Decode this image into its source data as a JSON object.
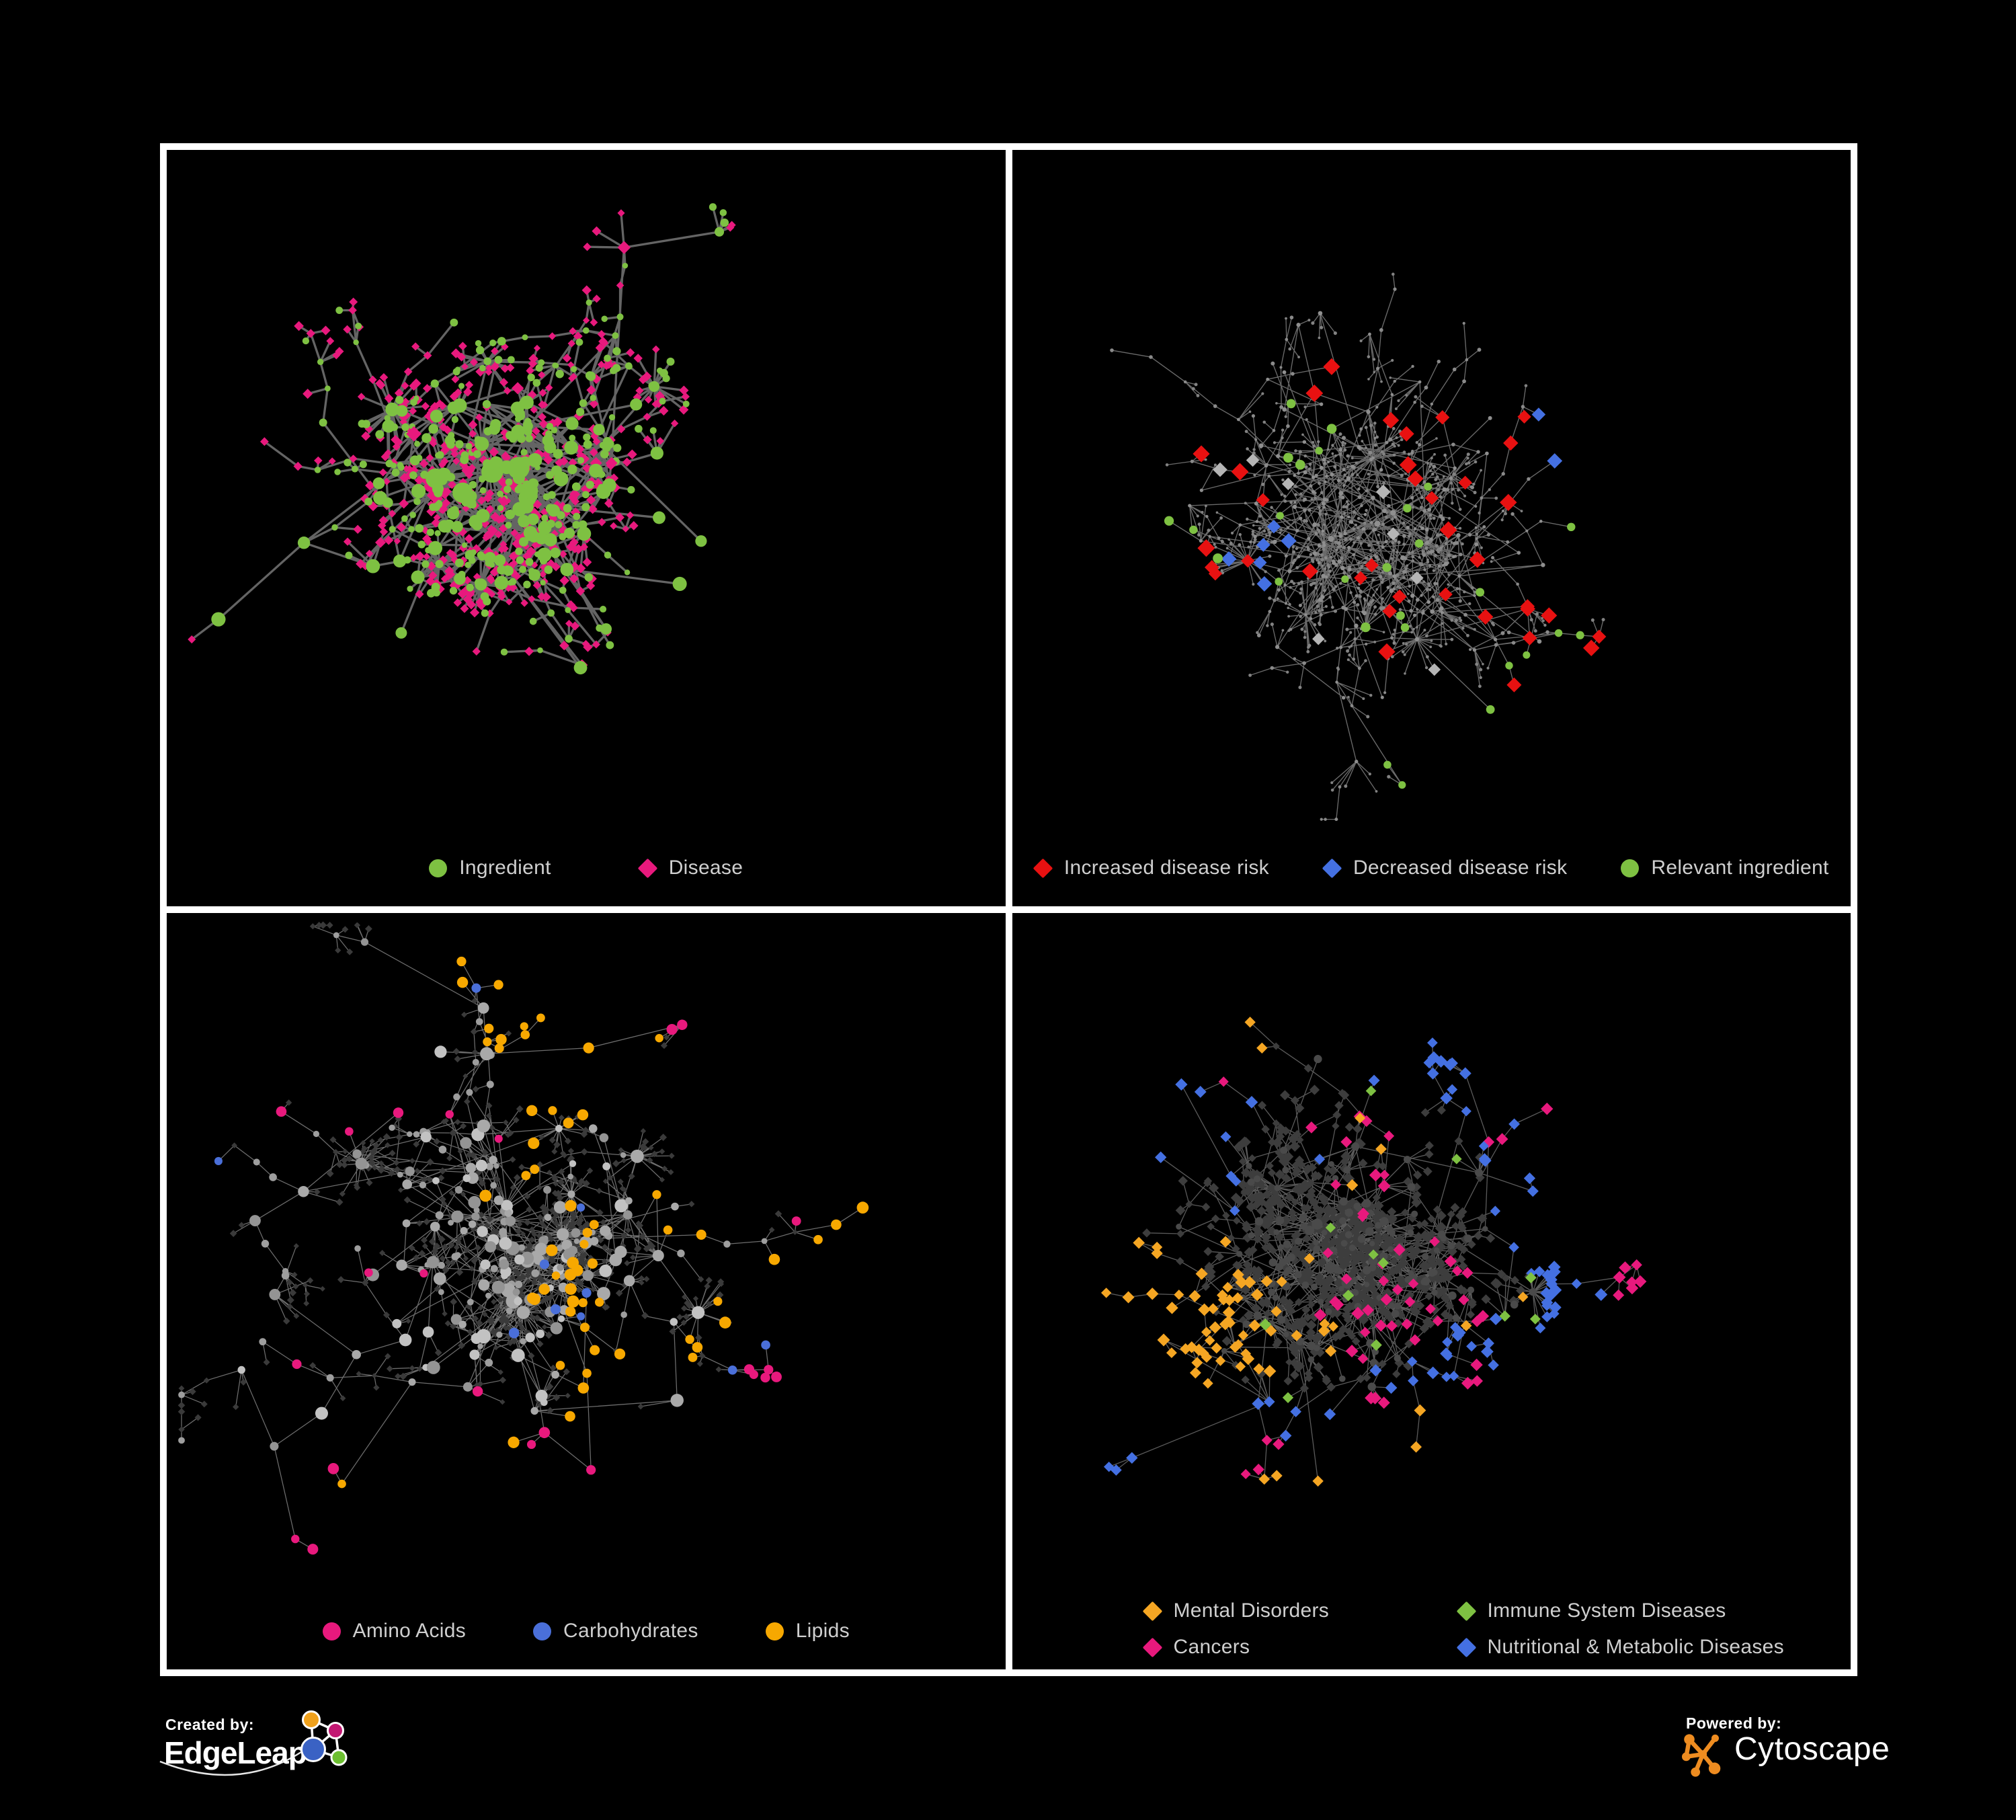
{
  "figure": {
    "background": "#000000",
    "frame_color": "#ffffff",
    "panel_background": "#000000",
    "legend_text_color": "#cfcfcf"
  },
  "panels": [
    {
      "name": "ingredient-disease-network",
      "legend": [
        {
          "label": "Ingredient",
          "shape": "circle",
          "color": "#7ec142"
        },
        {
          "label": "Disease",
          "shape": "diamond",
          "color": "#e8197d"
        }
      ]
    },
    {
      "name": "disease-risk-network",
      "legend": [
        {
          "label": "Increased disease risk",
          "shape": "diamond",
          "color": "#e81111"
        },
        {
          "label": "Decreased disease risk",
          "shape": "diamond",
          "color": "#4470e2"
        },
        {
          "label": "Relevant ingredient",
          "shape": "circle",
          "color": "#7ec142"
        }
      ]
    },
    {
      "name": "ingredient-class-network",
      "legend": [
        {
          "label": "Amino Acids",
          "shape": "circle",
          "color": "#e8197d"
        },
        {
          "label": "Carbohydrates",
          "shape": "circle",
          "color": "#4a6fd9"
        },
        {
          "label": "Lipids",
          "shape": "circle",
          "color": "#f7a800"
        }
      ]
    },
    {
      "name": "disease-category-network",
      "legend": [
        {
          "label": "Mental Disorders",
          "shape": "diamond",
          "color": "#f5a623"
        },
        {
          "label": "Immune System Diseases",
          "shape": "diamond",
          "color": "#7ec142"
        },
        {
          "label": "Cancers",
          "shape": "diamond",
          "color": "#e8197d"
        },
        {
          "label": "Nutritional & Metabolic Diseases",
          "shape": "diamond",
          "color": "#4470e2"
        }
      ]
    }
  ],
  "footer": {
    "created_by": {
      "label": "Created by:",
      "brand": "EdgeLeap",
      "logo_colors": {
        "orange": "#f0a11c",
        "magenta": "#c21772",
        "blue": "#3a62c4",
        "green": "#6cbf30",
        "stroke": "#ffffff"
      }
    },
    "powered_by": {
      "label": "Powered by:",
      "brand": "Cytoscape",
      "logo_color": "#ee8c20"
    }
  },
  "chart_data": [
    {
      "type": "network",
      "panel": "top-left",
      "seed": 11,
      "categories": [
        {
          "name": "Ingredient",
          "color": "#7ec142",
          "shape": "circle"
        },
        {
          "name": "Disease",
          "color": "#e8197d",
          "shape": "diamond"
        }
      ],
      "edge": {
        "color": "#6f6f6f",
        "width": 3.3,
        "opacity": 0.9
      },
      "gen": {
        "backbone": 150,
        "extraEdges": 22,
        "superHubs": 9,
        "leafMax": 6,
        "chainProb": 0.3
      },
      "style": {
        "backbone": {
          "shape": "circle",
          "color": "#7ec142",
          "rMin": 5,
          "rMax": 11,
          "coreR": 15,
          "altProb": 0.12,
          "altShape": "diamond",
          "altColor": "#e8197d",
          "altMin": 7,
          "altMax": 12
        },
        "chain": {
          "mix": [
            {
              "p": 0.5,
              "shape": "circle",
              "color": "#7ec142",
              "min": 4,
              "max": 6
            },
            {
              "p": 0.5,
              "shape": "diamond",
              "color": "#e8197d",
              "min": 5,
              "max": 7
            }
          ]
        },
        "leaf": {
          "mix": [
            {
              "p": 0.78,
              "shape": "diamond",
              "color": "#e8197d",
              "min": 5.5,
              "max": 7.5
            },
            {
              "p": 0.22,
              "shape": "circle",
              "color": "#7ec142",
              "min": 4.5,
              "max": 6.5
            }
          ]
        }
      },
      "highlights": []
    },
    {
      "type": "network",
      "panel": "top-right",
      "seed": 22,
      "categories": [
        {
          "name": "Increased disease risk",
          "color": "#e81111",
          "shape": "diamond"
        },
        {
          "name": "Decreased disease risk",
          "color": "#4470e2",
          "shape": "diamond"
        },
        {
          "name": "Relevant ingredient",
          "color": "#7ec142",
          "shape": "circle"
        }
      ],
      "edge": {
        "color": "#7d7d7d",
        "width": 1.35,
        "opacity": 0.85
      },
      "gen": {
        "backbone": 150,
        "extraEdges": 16,
        "superHubs": 9,
        "leafMax": 6,
        "chainProb": 0.32
      },
      "style": {
        "backbone": {
          "shape": "circle",
          "color": "#8f8f8f",
          "rMin": 2.2,
          "rMax": 3.4,
          "coreR": 4,
          "altProb": 0
        },
        "chain": {
          "mix": [
            {
              "p": 1,
              "shape": "circle",
              "color": "#8a8a8a",
              "min": 2,
              "max": 3
            }
          ]
        },
        "leaf": {
          "mix": [
            {
              "p": 1,
              "shape": "circle",
              "color": "#828282",
              "min": 1.8,
              "max": 2.6
            }
          ]
        }
      },
      "highlights": [
        {
          "shape": "diamond",
          "color": "#e81111",
          "min": 10,
          "max": 13,
          "clusters": [
            [
              0.47,
              0.5,
              0.09,
              16
            ],
            [
              0.27,
              0.5,
              0.05,
              7
            ],
            [
              0.6,
              0.62,
              0.05,
              5
            ],
            [
              0.72,
              0.8,
              0.03,
              3
            ],
            [
              0.4,
              0.34,
              0.025,
              2
            ],
            [
              0.56,
              0.43,
              0.03,
              3
            ]
          ]
        },
        {
          "shape": "diamond",
          "color": "#4470e2",
          "min": 10,
          "max": 12,
          "clusters": [
            [
              0.29,
              0.53,
              0.03,
              6
            ],
            [
              0.815,
              0.375,
              0.012,
              2
            ]
          ]
        },
        {
          "shape": "diamond",
          "color": "#b5b5b5",
          "min": 9,
          "max": 11,
          "clusters": [
            [
              0.3,
              0.47,
              0.04,
              3
            ],
            [
              0.5,
              0.55,
              0.08,
              4
            ],
            [
              0.35,
              0.62,
              0.02,
              1
            ]
          ]
        },
        {
          "shape": "circle",
          "color": "#7ec142",
          "min": 5.5,
          "max": 7.5,
          "clusters": [
            [
              0.45,
              0.5,
              0.1,
              13
            ],
            [
              0.27,
              0.47,
              0.05,
              6
            ],
            [
              0.7,
              0.79,
              0.03,
              5
            ],
            [
              0.8,
              0.38,
              0.012,
              1
            ],
            [
              0.57,
              0.88,
              0.012,
              1
            ],
            [
              0.16,
              0.55,
              0.012,
              1
            ]
          ]
        }
      ]
    },
    {
      "type": "network",
      "panel": "bottom-left",
      "seed": 33,
      "categories": [
        {
          "name": "Amino Acids",
          "color": "#e8197d",
          "shape": "circle"
        },
        {
          "name": "Carbohydrates",
          "color": "#4a6fd9",
          "shape": "circle"
        },
        {
          "name": "Lipids",
          "color": "#f7a800",
          "shape": "circle"
        }
      ],
      "edge": {
        "color": "#9b9b9b",
        "width": 1.25,
        "opacity": 0.7
      },
      "gen": {
        "backbone": 150,
        "extraEdges": 24,
        "superHubs": 10,
        "leafMax": 6,
        "chainProb": 0.32
      },
      "style": {
        "backbone": {
          "shape": "circle",
          "shades": [
            "#c2c2c2",
            "#a9a9a9",
            "#949494"
          ],
          "color": "#a9a9a9",
          "rMin": 5,
          "rMax": 10,
          "coreR": 12,
          "altProb": 0
        },
        "chain": {
          "mix": [
            {
              "p": 0.55,
              "shape": "circle",
              "color": "#9e9e9e",
              "min": 4,
              "max": 6
            },
            {
              "p": 0.45,
              "shape": "diamond",
              "color": "#3a3a3a",
              "min": 4,
              "max": 5.5
            }
          ]
        },
        "leaf": {
          "mix": [
            {
              "p": 1,
              "shape": "diamond",
              "color": "#3a3a3a",
              "min": 4,
              "max": 5.5
            }
          ]
        }
      },
      "highlights": [
        {
          "shape": "circle",
          "color": "#f7a800",
          "min": 6,
          "max": 9,
          "clusters": [
            [
              0.47,
              0.49,
              0.04,
              20
            ],
            [
              0.45,
              0.22,
              0.05,
              13
            ],
            [
              0.52,
              0.6,
              0.025,
              5
            ],
            [
              0.66,
              0.57,
              0.045,
              6
            ],
            [
              0.31,
              0.8,
              0.02,
              2
            ],
            [
              0.85,
              0.42,
              0.03,
              3
            ],
            [
              0.31,
              0.1,
              0.02,
              2
            ],
            [
              0.55,
              0.12,
              0.015,
              1
            ],
            [
              0.43,
              0.35,
              0.03,
              4
            ],
            [
              0.6,
              0.4,
              0.03,
              3
            ]
          ]
        },
        {
          "shape": "circle",
          "color": "#e8197d",
          "min": 6,
          "max": 8.5,
          "clusters": [
            [
              0.2,
              0.22,
              0.04,
              3
            ],
            [
              0.34,
              0.31,
              0.03,
              2
            ],
            [
              0.28,
              0.52,
              0.04,
              2
            ],
            [
              0.86,
              0.82,
              0.05,
              5
            ],
            [
              0.3,
              0.89,
              0.03,
              4
            ],
            [
              0.56,
              0.8,
              0.04,
              2
            ],
            [
              0.95,
              0.34,
              0.012,
              1
            ],
            [
              0.81,
              0.06,
              0.012,
              1
            ],
            [
              0.38,
              0.66,
              0.015,
              1
            ],
            [
              0.13,
              0.6,
              0.012,
              1
            ],
            [
              0.67,
              0.05,
              0.012,
              1
            ]
          ]
        },
        {
          "shape": "circle",
          "color": "#4a6fd9",
          "min": 6,
          "max": 8,
          "clusters": [
            [
              0.49,
              0.51,
              0.025,
              4
            ],
            [
              0.35,
              0.08,
              0.01,
              1
            ],
            [
              0.07,
              0.33,
              0.01,
              1
            ],
            [
              0.51,
              0.38,
              0.015,
              2
            ],
            [
              0.845,
              0.75,
              0.012,
              2
            ],
            [
              0.42,
              0.56,
              0.01,
              1
            ]
          ]
        }
      ]
    },
    {
      "type": "network",
      "panel": "bottom-right",
      "seed": 47,
      "categories": [
        {
          "name": "Mental Disorders",
          "color": "#f5a623",
          "shape": "diamond"
        },
        {
          "name": "Immune System Diseases",
          "color": "#7ec142",
          "shape": "diamond"
        },
        {
          "name": "Cancers",
          "color": "#e8197d",
          "shape": "diamond"
        },
        {
          "name": "Nutritional & Metabolic Diseases",
          "color": "#4470e2",
          "shape": "diamond"
        }
      ],
      "edge": {
        "color": "#707070",
        "width": 1.3,
        "opacity": 0.8
      },
      "gen": {
        "backbone": 160,
        "extraEdges": 28,
        "superHubs": 11,
        "leafMax": 7,
        "chainProb": 0.34
      },
      "style": {
        "backbone": {
          "shape": "circle",
          "color": "#4a4a4a",
          "rMin": 4,
          "rMax": 6.5,
          "coreR": 8,
          "altProb": 0
        },
        "chain": {
          "mix": [
            {
              "p": 1,
              "shape": "diamond",
              "color": "#3d3d3d",
              "min": 5.5,
              "max": 7
            }
          ]
        },
        "leaf": {
          "mix": [
            {
              "p": 1,
              "shape": "diamond",
              "color": "#3d3d3d",
              "min": 6,
              "max": 8
            }
          ]
        }
      },
      "highlights": [
        {
          "shape": "diamond",
          "color": "#f5a623",
          "min": 7.5,
          "max": 9.5,
          "clusters": [
            [
              0.235,
              0.54,
              0.05,
              55
            ],
            [
              0.3,
              0.15,
              0.02,
              2
            ],
            [
              0.42,
              0.3,
              0.03,
              3
            ],
            [
              0.155,
              0.4,
              0.02,
              2
            ],
            [
              0.33,
              0.92,
              0.025,
              3
            ],
            [
              0.6,
              0.54,
              0.03,
              2
            ],
            [
              0.68,
              0.9,
              0.015,
              1
            ],
            [
              0.48,
              0.84,
              0.015,
              1
            ],
            [
              0.38,
              0.55,
              0.02,
              3
            ]
          ]
        },
        {
          "shape": "diamond",
          "color": "#e8197d",
          "min": 7.5,
          "max": 9.5,
          "clusters": [
            [
              0.46,
              0.5,
              0.06,
              36
            ],
            [
              0.43,
              0.28,
              0.035,
              6
            ],
            [
              0.88,
              0.3,
              0.03,
              7
            ],
            [
              0.27,
              0.76,
              0.025,
              4
            ],
            [
              0.52,
              0.91,
              0.035,
              5
            ],
            [
              0.245,
              0.13,
              0.012,
              1
            ],
            [
              0.77,
              0.7,
              0.012,
              1
            ],
            [
              0.6,
              0.3,
              0.02,
              2
            ]
          ]
        },
        {
          "shape": "diamond",
          "color": "#4470e2",
          "min": 7.5,
          "max": 9.5,
          "clusters": [
            [
              0.565,
              0.63,
              0.03,
              16
            ],
            [
              0.76,
              0.32,
              0.07,
              22
            ],
            [
              0.5,
              0.095,
              0.035,
              6
            ],
            [
              0.17,
              0.17,
              0.035,
              5
            ],
            [
              0.26,
              0.35,
              0.03,
              4
            ],
            [
              0.37,
              0.7,
              0.035,
              5
            ],
            [
              0.3,
              0.93,
              0.035,
              4
            ],
            [
              0.6,
              0.85,
              0.02,
              2
            ],
            [
              0.82,
              0.52,
              0.025,
              4
            ],
            [
              0.66,
              0.12,
              0.025,
              3
            ],
            [
              0.92,
              0.44,
              0.02,
              2
            ],
            [
              0.47,
              0.18,
              0.02,
              2
            ]
          ]
        },
        {
          "shape": "diamond",
          "color": "#7ec142",
          "min": 7.5,
          "max": 9,
          "clusters": [
            [
              0.41,
              0.33,
              0.06,
              3
            ],
            [
              0.43,
              0.6,
              0.05,
              3
            ],
            [
              0.7,
              0.86,
              0.02,
              2
            ],
            [
              0.3,
              0.94,
              0.008,
              1
            ],
            [
              0.83,
              0.45,
              0.008,
              1
            ],
            [
              0.52,
              0.33,
              0.01,
              1
            ],
            [
              0.35,
              0.42,
              0.01,
              1
            ]
          ]
        }
      ]
    }
  ]
}
